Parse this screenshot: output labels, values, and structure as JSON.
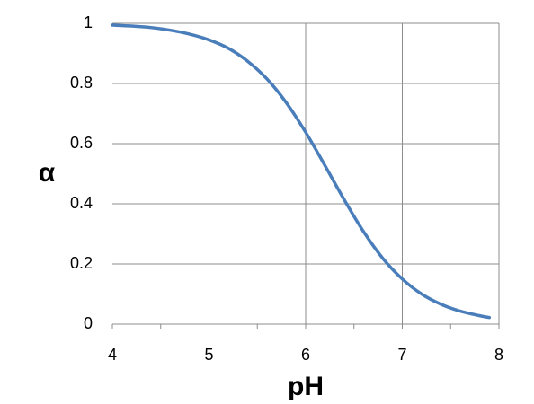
{
  "chart_data": {
    "type": "line",
    "title": "",
    "xlabel": "pH",
    "ylabel": "α",
    "xlim": [
      4,
      8
    ],
    "ylim": [
      0,
      1
    ],
    "x_ticks": [
      4,
      5,
      6,
      7,
      8
    ],
    "y_ticks": [
      0,
      0.2,
      0.4,
      0.6,
      0.8,
      1
    ],
    "x_tick_labels": [
      "4",
      "5",
      "6",
      "7",
      "8"
    ],
    "y_tick_labels": [
      "0",
      "0.2",
      "0.4",
      "0.6",
      "0.8",
      "1"
    ],
    "grid": true,
    "legend": "none",
    "series": [
      {
        "color": "#4a7ebb",
        "x": [
          4.0,
          4.2,
          4.4,
          4.6,
          4.8,
          5.0,
          5.2,
          5.4,
          5.6,
          5.8,
          6.0,
          6.2,
          6.4,
          6.6,
          6.8,
          7.0,
          7.2,
          7.4,
          7.6,
          7.8,
          7.9
        ],
        "y": [
          0.994,
          0.991,
          0.986,
          0.977,
          0.964,
          0.945,
          0.917,
          0.874,
          0.815,
          0.736,
          0.638,
          0.527,
          0.413,
          0.307,
          0.218,
          0.15,
          0.1,
          0.066,
          0.043,
          0.028,
          0.022
        ]
      }
    ],
    "colors": {
      "grid": "#8c8c8c",
      "axis": "#8c8c8c"
    }
  }
}
